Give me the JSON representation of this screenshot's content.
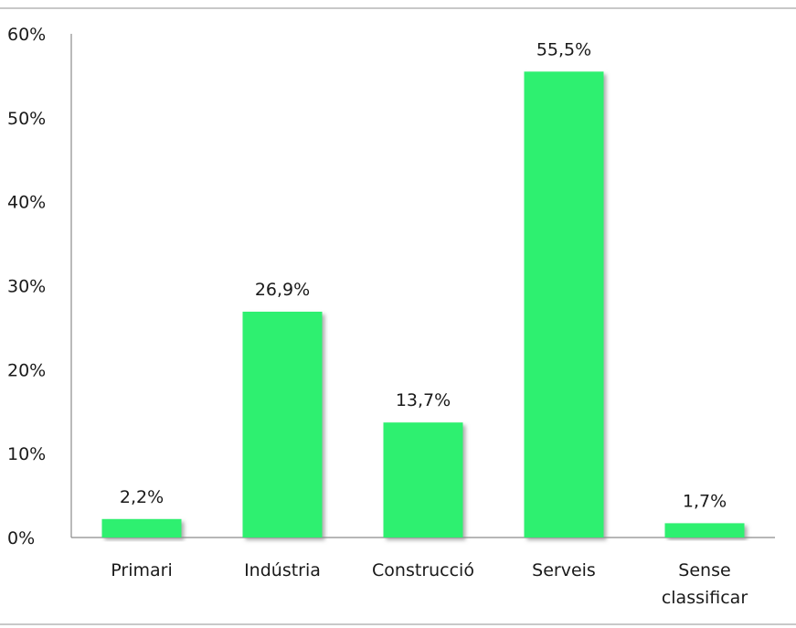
{
  "chart_data": {
    "type": "bar",
    "categories": [
      "Primari",
      "Indústria",
      "Construcció",
      "Serveis",
      [
        "Sense",
        "classificar"
      ]
    ],
    "values": [
      2.2,
      26.9,
      13.7,
      55.5,
      1.7
    ],
    "data_labels": [
      "2,2%",
      "26,9%",
      "13,7%",
      "55,5%",
      "1,7%"
    ],
    "ylim": [
      0,
      60
    ],
    "yticks": [
      0,
      10,
      20,
      30,
      40,
      50,
      60
    ],
    "ytick_labels": [
      "0%",
      "10%",
      "20%",
      "30%",
      "40%",
      "50%",
      "60%"
    ],
    "grid": false,
    "legend": "none",
    "bar_color": "#2ef06f",
    "shadow_color": "#9a9a9a"
  }
}
